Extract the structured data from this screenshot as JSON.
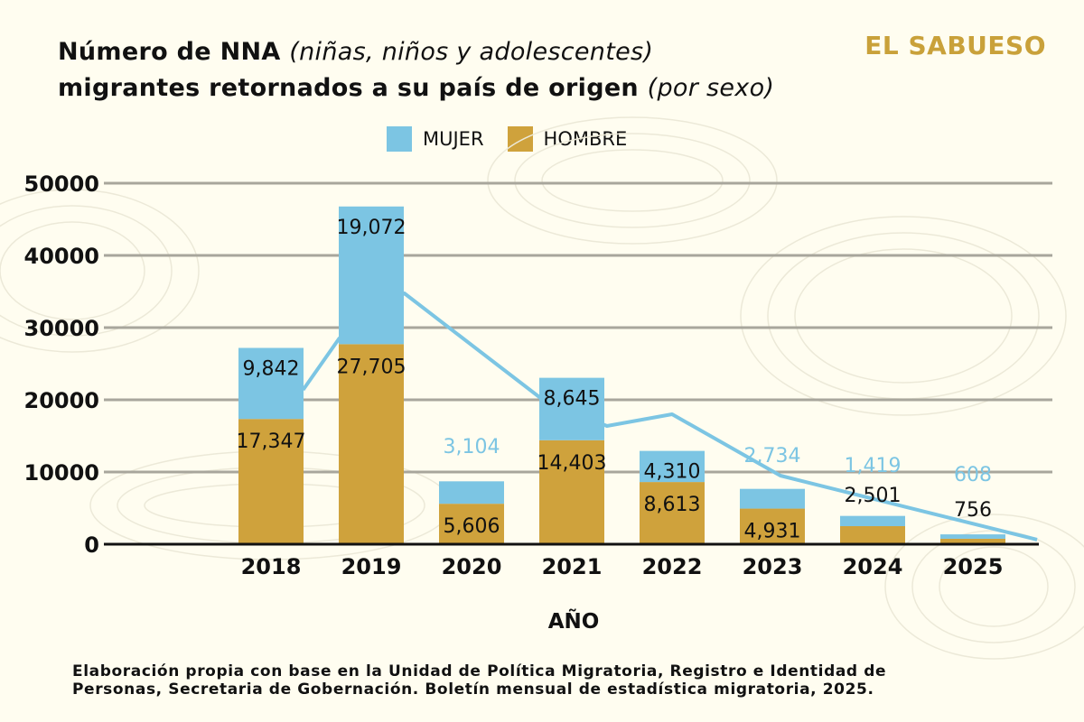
{
  "title": {
    "line1_bold": "Número de NNA",
    "line1_italic": "(niñas, niños y adolescentes)",
    "line2_bold": "migrantes retornados a su país de origen",
    "line2_italic": "(por sexo)"
  },
  "logo": "EL SABUESO",
  "source": "Elaboración propia con base en la Unidad de Política Migratoria, Registro e Identidad de Personas, Secretaria de Gobernación. Boletín mensual de estadística migratoria, 2025.",
  "colors": {
    "mujer": "#7cc5e3",
    "hombre": "#cfa23c",
    "logo": "#c9a13a",
    "background": "#fffdf0",
    "grid": "#a8a69c"
  },
  "chart_data": {
    "type": "bar",
    "stacked": true,
    "title": "Número de NNA (niñas, niños y adolescentes) migrantes retornados a su país de origen (por sexo)",
    "xlabel": "AÑO",
    "ylabel": "",
    "categories": [
      "2018",
      "2019",
      "2020",
      "2021",
      "2022",
      "2023",
      "2024",
      "2025"
    ],
    "series": [
      {
        "name": "HOMBRE",
        "values": [
          17347,
          27705,
          5606,
          14403,
          8613,
          4931,
          2501,
          756
        ],
        "labels": [
          "17,347",
          "27,705",
          "5,606",
          "14,403",
          "8,613",
          "4,931",
          "2,501",
          "756"
        ]
      },
      {
        "name": "MUJER",
        "values": [
          9842,
          19072,
          3104,
          8645,
          4310,
          2734,
          1419,
          608
        ],
        "labels": [
          "9,842",
          "19,072",
          "3,104",
          "8,645",
          "4,310",
          "2,734",
          "1,419",
          "608"
        ]
      }
    ],
    "trend_line": {
      "x": [
        2018.32,
        2018.68,
        2019.33,
        2020.7,
        2021.35,
        2022.0,
        2023.08,
        2025.64
      ],
      "y": [
        21375,
        28500,
        34750,
        20125,
        16375,
        18000,
        9500,
        625
      ]
    },
    "yticks": [
      "0",
      "10000",
      "20000",
      "30000",
      "40000",
      "50000"
    ],
    "ylim": [
      0,
      50000
    ],
    "grid": true,
    "legend": "top-center"
  }
}
